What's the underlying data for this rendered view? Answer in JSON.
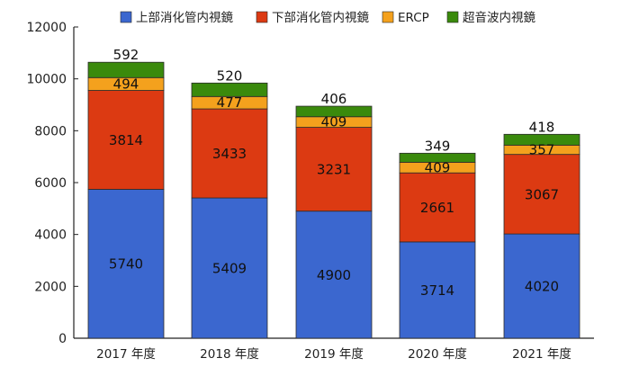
{
  "chart_data": {
    "type": "bar",
    "stacked": true,
    "categories": [
      "2017 年度",
      "2018 年度",
      "2019 年度",
      "2020 年度",
      "2021 年度"
    ],
    "series": [
      {
        "name": "上部消化管内視鏡",
        "color": "#3b67cf",
        "values": [
          5740,
          5409,
          4900,
          3714,
          4020
        ]
      },
      {
        "name": "下部消化管内視鏡",
        "color": "#dc3a12",
        "values": [
          3814,
          3433,
          3231,
          2661,
          3067
        ]
      },
      {
        "name": "ERCP",
        "color": "#f4a11d",
        "values": [
          494,
          477,
          409,
          409,
          357
        ]
      },
      {
        "name": "超音波内視鏡",
        "color": "#3a8a0c",
        "values": [
          592,
          520,
          406,
          349,
          418
        ]
      }
    ],
    "ylim": [
      0,
      12000
    ],
    "yticks": [
      0,
      2000,
      4000,
      6000,
      8000,
      10000,
      12000
    ],
    "grid": false,
    "legend": "top",
    "title": "",
    "xlabel": "",
    "ylabel": ""
  }
}
